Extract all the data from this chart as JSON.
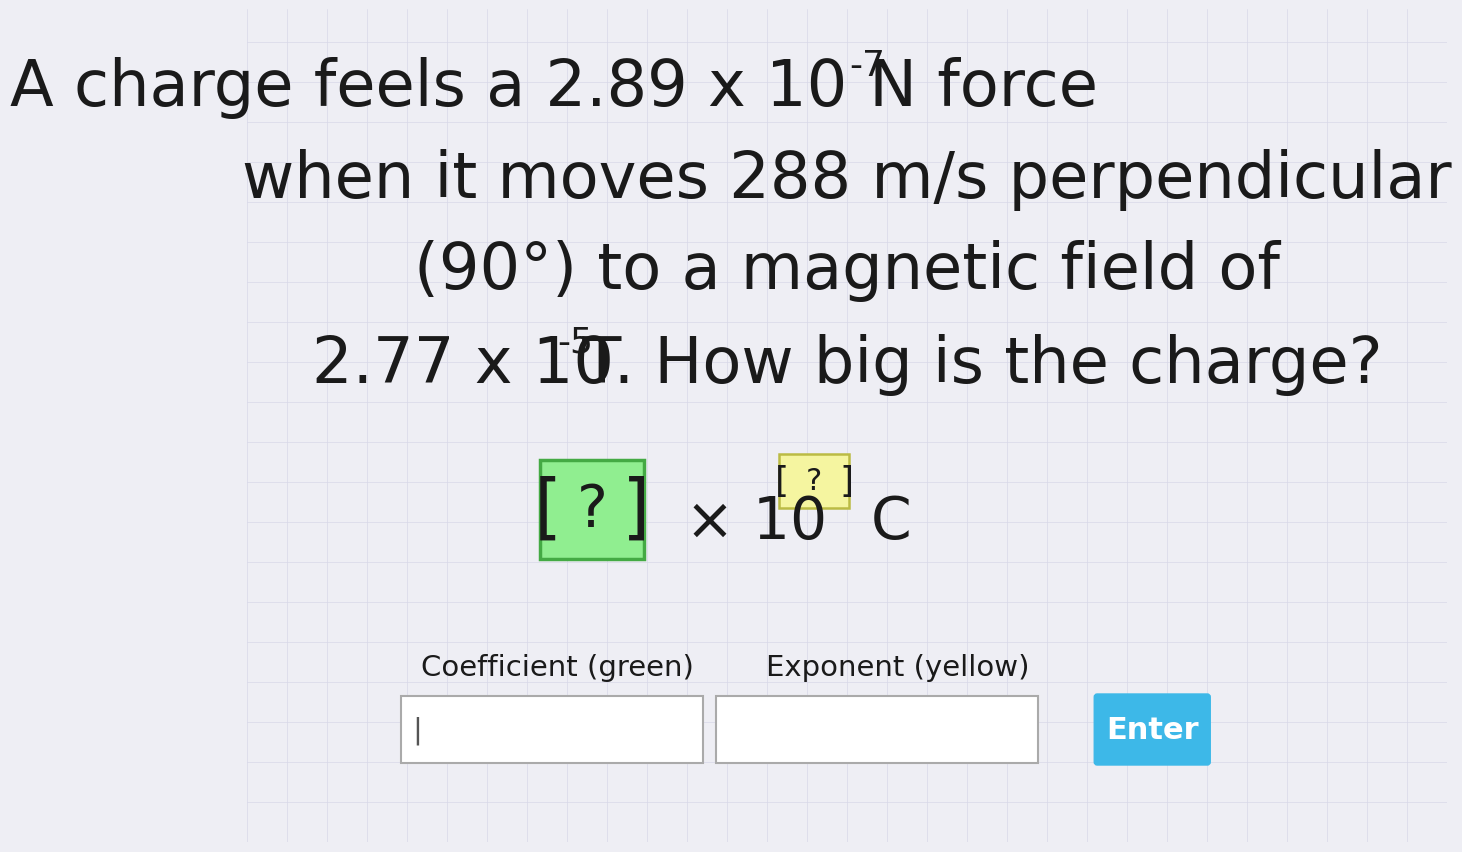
{
  "background_color": "#eeeef4",
  "grid_color": "#d8d8e8",
  "text_color": "#1a1a1a",
  "line1_main": "A charge feels a 2.89 x 10",
  "line1_sup": "-7",
  "line1_end": " N force",
  "line2": "when it moves 288 m/s perpendicular",
  "line3": "(90°) to a magnetic field of",
  "line4_main": "2.77 x 10",
  "line4_sup": "-5",
  "line4_end": " T. How big is the charge?",
  "coeff_label": "Coefficient (green)",
  "exp_label": "Exponent (yellow)",
  "enter_label": "Enter",
  "enter_color": "#3db8e8",
  "green_box_color": "#90ee90",
  "green_box_edge": "#44aa44",
  "yellow_box_color": "#f5f5a0",
  "yellow_box_edge": "#bbbb44",
  "input_box_color": "#ffffff",
  "input_border_color": "#aaaaaa",
  "main_fontsize": 46,
  "sup_fontsize": 26,
  "mid_fontsize": 42,
  "mid_sup_fontsize": 22,
  "label_fontsize": 21,
  "enter_fontsize": 22
}
